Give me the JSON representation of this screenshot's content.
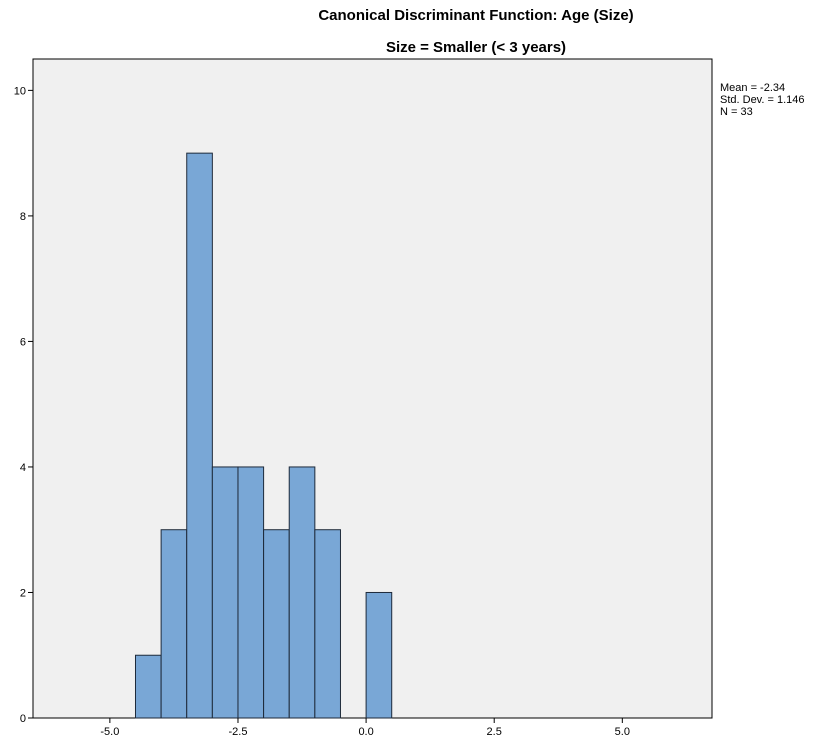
{
  "chart_data": {
    "type": "bar",
    "title": "Canonical Discriminant Function: Age (Size)",
    "subtitle": "Size = Smaller (< 3 years)",
    "xlabel": "",
    "ylabel": "",
    "xlim": [
      -6.5,
      6.75
    ],
    "ylim": [
      0,
      10.5
    ],
    "x_ticks": [
      -5.0,
      -2.5,
      0.0,
      2.5,
      5.0
    ],
    "x_tick_labels": [
      "-5.0",
      "-2.5",
      "0.0",
      "2.5",
      "5.0"
    ],
    "y_ticks": [
      0,
      2,
      4,
      6,
      8,
      10
    ],
    "y_tick_labels": [
      "0",
      "2",
      "4",
      "6",
      "8",
      "10"
    ],
    "bin_width": 0.5,
    "bins": [
      {
        "start": -4.5,
        "end": -4.0,
        "count": 1
      },
      {
        "start": -4.0,
        "end": -3.5,
        "count": 3
      },
      {
        "start": -3.5,
        "end": -3.0,
        "count": 9
      },
      {
        "start": -3.0,
        "end": -2.5,
        "count": 4
      },
      {
        "start": -2.5,
        "end": -2.0,
        "count": 4
      },
      {
        "start": -2.0,
        "end": -1.5,
        "count": 3
      },
      {
        "start": -1.5,
        "end": -1.0,
        "count": 4
      },
      {
        "start": -1.0,
        "end": -0.5,
        "count": 3
      },
      {
        "start": 0.0,
        "end": 0.5,
        "count": 2
      }
    ],
    "stats_lines": [
      "Mean = -2.34",
      "Std. Dev. = 1.146",
      "N = 33"
    ],
    "grid": false,
    "colors": {
      "bar_fill": "#79a7d6",
      "bar_stroke": "#1e2a3a",
      "plot_background": "#f0f0f0",
      "axis": "#000000"
    }
  }
}
